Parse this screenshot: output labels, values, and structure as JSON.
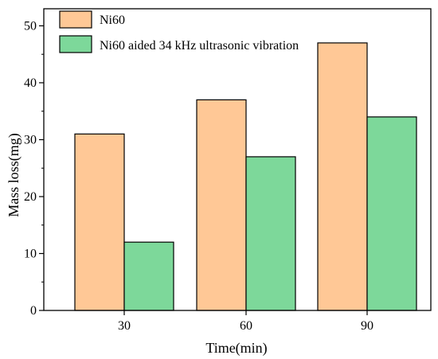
{
  "chart_data": {
    "type": "bar",
    "categories": [
      "30",
      "60",
      "90"
    ],
    "series": [
      {
        "name": "Ni60",
        "values": [
          31,
          37,
          47
        ],
        "color": "#FFC896"
      },
      {
        "name": "Ni60 aided 34 kHz ultrasonic vibration",
        "values": [
          12,
          27,
          34
        ],
        "color": "#7DD89A"
      }
    ],
    "title": "",
    "xlabel": "Time(min)",
    "ylabel": "Mass loss(mg)",
    "ylim": [
      0,
      53
    ],
    "yticks": [
      0,
      10,
      20,
      30,
      40,
      50
    ],
    "grid": false,
    "legend_position": "top-left"
  }
}
